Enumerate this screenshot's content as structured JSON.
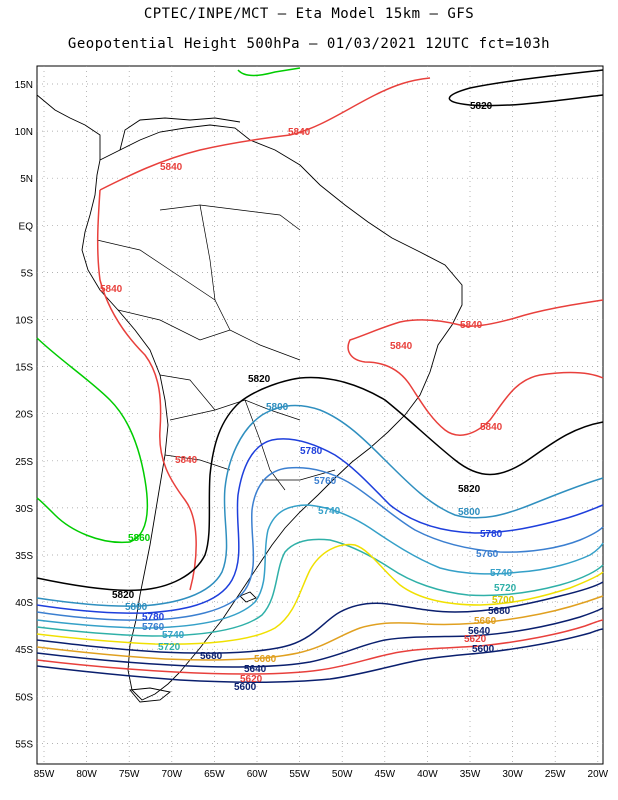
{
  "header": {
    "line1": "CPTEC/INPE/MCT –  Eta Model 15km – GFS",
    "line2": "Geopotential Height 500hPa – 01/03/2021 12UTC fct=103h"
  },
  "axes": {
    "lat_labels": [
      "15N",
      "10N",
      "5N",
      "EQ",
      "5S",
      "10S",
      "15S",
      "20S",
      "25S",
      "30S",
      "35S",
      "40S",
      "45S",
      "50S",
      "55S"
    ],
    "lon_labels": [
      "85W",
      "80W",
      "75W",
      "70W",
      "65W",
      "60W",
      "55W",
      "50W",
      "45W",
      "40W",
      "35W",
      "30W",
      "25W",
      "20W"
    ]
  },
  "contours": [
    {
      "value": "5860",
      "color": "#00cc00"
    },
    {
      "value": "5840",
      "color": "#e8403c"
    },
    {
      "value": "5820",
      "color": "#000000"
    },
    {
      "value": "5800",
      "color": "#2f8fbf"
    },
    {
      "value": "5780",
      "color": "#1e3fdc"
    },
    {
      "value": "5760",
      "color": "#3b7fd0"
    },
    {
      "value": "5740",
      "color": "#35a0c8"
    },
    {
      "value": "5720",
      "color": "#2fb0a8"
    },
    {
      "value": "5700",
      "color": "#f0e000"
    },
    {
      "value": "5680",
      "color": "#0a1f6e"
    },
    {
      "value": "5660",
      "color": "#e0a020"
    },
    {
      "value": "5640",
      "color": "#0a1f6e"
    },
    {
      "value": "5620",
      "color": "#e8403c"
    },
    {
      "value": "5600",
      "color": "#0a1f6e"
    }
  ],
  "contour_labels": {
    "c5820_ne": "5820",
    "c5840_n": "5840",
    "c5840_nw": "5840",
    "c5840_w": "5840",
    "c5840_e1": "5840",
    "c5840_e2": "5840",
    "c5840_se": "5840",
    "c5840_s": "5840",
    "c5820_c": "5820",
    "c5820_e": "5820",
    "c5820_w": "5820",
    "c5860_w": "5860",
    "c5800_c": "5800",
    "c5800_e": "5800",
    "c5800_w": "5800",
    "c5780_c": "5780",
    "c5780_e": "5780",
    "c5780_w": "5780",
    "c5760_c": "5760",
    "c5760_e": "5760",
    "c5760_w": "5760",
    "c5740_c": "5740",
    "c5740_e": "5740",
    "c5740_w": "5740",
    "c5720_e": "5720",
    "c5720_w": "5720",
    "c5700_e": "5700",
    "c5680_e": "5680",
    "c5680_w": "5680",
    "c5660_e": "5660",
    "c5660_w": "5660",
    "c5640_e": "5640",
    "c5640_w": "5640",
    "c5620_e": "5620",
    "c5620_w": "5620",
    "c5600_e": "5600",
    "c5600_w": "5600"
  }
}
